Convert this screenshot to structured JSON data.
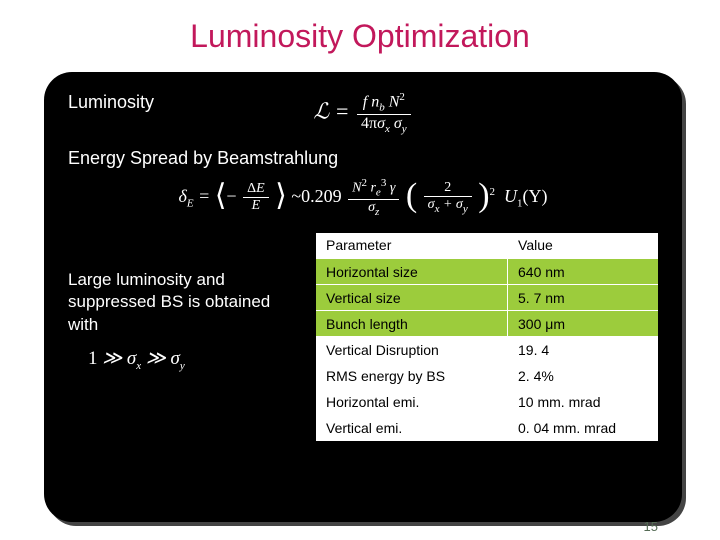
{
  "title": "Luminosity Optimization",
  "section1_label": "Luminosity",
  "formula1": {
    "lhs": "ℒ =",
    "num": "f n_b N²",
    "den": "4πσ_x σ_y"
  },
  "section2_label": "Energy Spread by Beamstrahlung",
  "formula2": {
    "delta": "δ_E =",
    "avg_lhs": "−",
    "avg_num": "ΔE",
    "avg_den": "E",
    "approx": "~0.209",
    "mid_num": "N² r_e³ γ",
    "mid_den": "σ_z",
    "paren_num": "2",
    "paren_den": "σ_x + σ_y",
    "sq": "2",
    "tail": "U₁(Υ)"
  },
  "note": "Large luminosity and suppressed BS is obtained with",
  "note_formula": "1 ≫ σ_x ≫ σ_y",
  "table": {
    "headers": [
      "Parameter",
      "Value"
    ],
    "rows": [
      {
        "param": "Horizontal size",
        "value": "640 nm",
        "bg": "#9ccc3c"
      },
      {
        "param": "Vertical size",
        "value": "5. 7 nm",
        "bg": "#9ccc3c"
      },
      {
        "param": "Bunch length",
        "value": "300 μm",
        "bg": "#9ccc3c"
      },
      {
        "param": "Vertical Disruption",
        "value": "19. 4",
        "bg": "#ffffff"
      },
      {
        "param": "RMS energy by BS",
        "value": "2. 4%",
        "bg": "#ffffff"
      },
      {
        "param": "Horizontal emi.",
        "value": "10 mm. mrad",
        "bg": "#ffffff"
      },
      {
        "param": "Vertical emi.",
        "value": "0. 04 mm. mrad",
        "bg": "#ffffff"
      }
    ]
  },
  "page_number": "15",
  "colors": {
    "title": "#c2185b",
    "panel_bg": "#000000",
    "panel_shadow": "#444444",
    "highlight_row": "#9ccc3c",
    "plain_row": "#ffffff"
  }
}
